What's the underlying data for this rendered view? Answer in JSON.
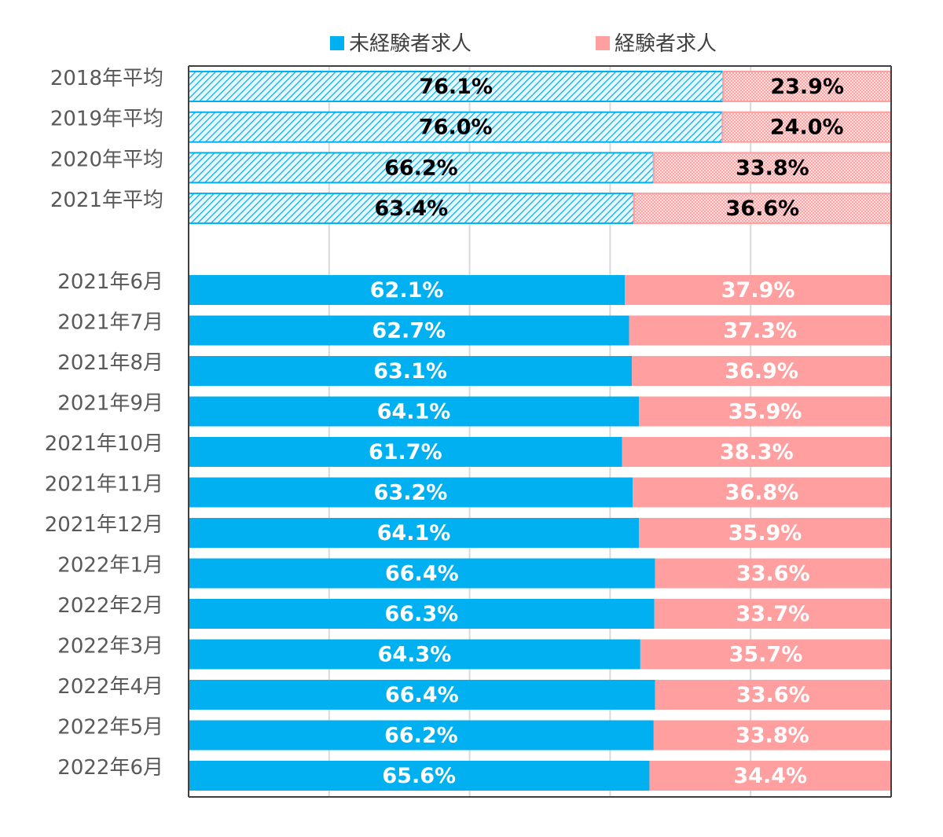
{
  "chart_data": {
    "type": "bar",
    "orientation": "horizontal",
    "stacked": "100%",
    "title": "",
    "xlabel": "",
    "ylabel": "",
    "xlim": [
      0,
      100
    ],
    "grid": true,
    "legend_position": "top",
    "categories": [
      "2018年平均",
      "2019年平均",
      "2020年平均",
      "2021年平均",
      "2021年6月",
      "2021年7月",
      "2021年8月",
      "2021年9月",
      "2021年10月",
      "2021年11月",
      "2021年12月",
      "2022年1月",
      "2022年2月",
      "2022年3月",
      "2022年4月",
      "2022年5月",
      "2022年6月"
    ],
    "series": [
      {
        "name": "未経験者求人",
        "color": "#00B0F0",
        "values": [
          76.1,
          76.0,
          66.2,
          63.4,
          62.1,
          62.7,
          63.1,
          64.1,
          61.7,
          63.2,
          64.1,
          66.4,
          66.3,
          64.3,
          66.4,
          66.2,
          65.6
        ],
        "labels": [
          "76.1%",
          "76.0%",
          "66.2%",
          "63.4%",
          "62.1%",
          "62.7%",
          "63.1%",
          "64.1%",
          "61.7%",
          "63.2%",
          "64.1%",
          "66.4%",
          "66.3%",
          "64.3%",
          "66.4%",
          "66.2%",
          "65.6%"
        ]
      },
      {
        "name": "経験者求人",
        "color": "#FF9F9F",
        "values": [
          23.9,
          24.0,
          33.8,
          36.6,
          37.9,
          37.3,
          36.9,
          35.9,
          38.3,
          36.8,
          35.9,
          33.6,
          33.7,
          35.7,
          33.6,
          33.8,
          34.4
        ],
        "labels": [
          "23.9%",
          "24.0%",
          "33.8%",
          "36.6%",
          "37.9%",
          "37.3%",
          "36.9%",
          "35.9%",
          "38.3%",
          "36.8%",
          "35.9%",
          "33.6%",
          "33.7%",
          "35.7%",
          "33.6%",
          "33.8%",
          "34.4%"
        ]
      }
    ],
    "patterned_categories": 4,
    "annual_label_color": "#000000",
    "monthly_label_color": "#ffffff"
  }
}
